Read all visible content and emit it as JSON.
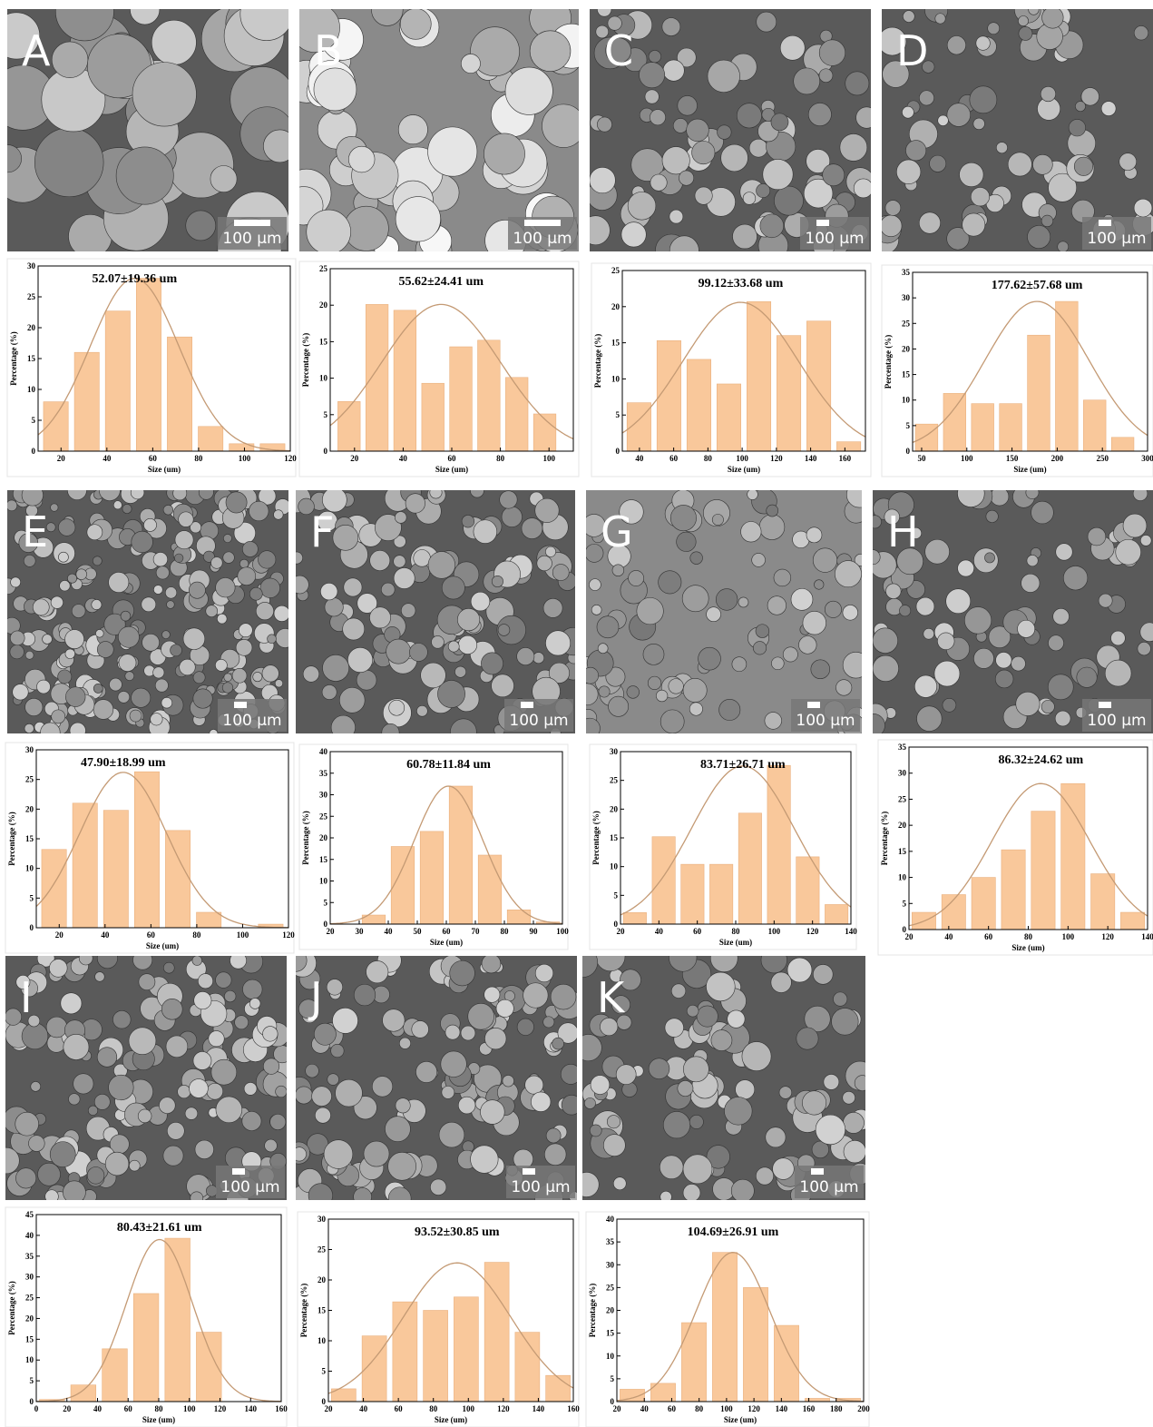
{
  "images": [
    {
      "label": "A",
      "scale_bar": "100 μm"
    },
    {
      "label": "B",
      "scale_bar": "100 μm"
    },
    {
      "label": "C",
      "scale_bar": "100 μm"
    },
    {
      "label": "D",
      "scale_bar": "100 μm"
    },
    {
      "label": "E",
      "scale_bar": "100 μm"
    },
    {
      "label": "F",
      "scale_bar": "100 μm"
    },
    {
      "label": "G",
      "scale_bar": "100 μm"
    },
    {
      "label": "H",
      "scale_bar": "100 μm"
    },
    {
      "label": "I",
      "scale_bar": "100 μm"
    },
    {
      "label": "J",
      "scale_bar": "100 μm"
    },
    {
      "label": "K",
      "scale_bar": "100 μm"
    }
  ],
  "chart_data": [
    {
      "type": "histogram",
      "title": "52.07±19.36 um",
      "x_label": "Size (um)",
      "y_label": "Percentage (%)",
      "color": "#f9c89b",
      "fit_color": "#c49a74",
      "bins": [
        11,
        24.5,
        38,
        51.5,
        65,
        78.5,
        92,
        105.5,
        119
      ],
      "values": [
        8,
        16,
        22.7,
        28,
        18.5,
        4,
        1.2,
        1.2
      ],
      "fit": {
        "mean": 52.07,
        "sd": 19.36,
        "peak": 28
      },
      "xlim": [
        10,
        120
      ],
      "xticks": [
        20,
        40,
        60,
        80,
        100,
        120
      ],
      "ylim": [
        0,
        30
      ],
      "yticks": [
        0,
        5,
        10,
        15,
        20,
        25,
        30
      ]
    },
    {
      "type": "histogram",
      "title": "55.62±24.41 um",
      "x_label": "Size (um)",
      "y_label": "Percentage (%)",
      "color": "#f9c89b",
      "fit_color": "#c49a74",
      "bins": [
        12,
        23.5,
        35,
        46.5,
        58,
        69.5,
        81,
        92.5,
        104
      ],
      "values": [
        6.8,
        20.1,
        19.3,
        9.3,
        14.3,
        15.2,
        10.1,
        5.1
      ],
      "fit": {
        "mean": 55.62,
        "sd": 24.41,
        "peak": 20.1
      },
      "xlim": [
        10,
        110
      ],
      "xticks": [
        20,
        40,
        60,
        80,
        100
      ],
      "ylim": [
        0,
        25
      ],
      "yticks": [
        0,
        5,
        10,
        15,
        20,
        25
      ]
    },
    {
      "type": "histogram",
      "title": "99.12±33.68 um",
      "x_label": "Size (um)",
      "y_label": "Percentage (%)",
      "color": "#f9c89b",
      "fit_color": "#c49a74",
      "bins": [
        31,
        48.5,
        66,
        83.5,
        101,
        118.5,
        136,
        153.5,
        171
      ],
      "values": [
        6.7,
        15.3,
        12.7,
        9.3,
        20.7,
        16,
        18,
        1.3
      ],
      "fit": {
        "mean": 99.12,
        "sd": 33.68,
        "peak": 20.6
      },
      "xlim": [
        30,
        172
      ],
      "xticks": [
        40,
        60,
        80,
        100,
        120,
        140,
        160
      ],
      "ylim": [
        0,
        25
      ],
      "yticks": [
        0,
        5,
        10,
        15,
        20,
        25
      ]
    },
    {
      "type": "histogram",
      "title": "177.62±57.68 um",
      "x_label": "Size (um)",
      "y_label": "Percentage (%)",
      "color": "#f9c89b",
      "fit_color": "#c49a74",
      "bins": [
        40,
        71,
        102,
        133,
        164,
        195,
        226,
        257,
        288
      ],
      "values": [
        5.3,
        11.3,
        9.3,
        9.3,
        22.7,
        29.3,
        10,
        2.7
      ],
      "fit": {
        "mean": 177.62,
        "sd": 57.68,
        "peak": 29.3
      },
      "xlim": [
        40,
        300
      ],
      "xticks": [
        50,
        100,
        150,
        200,
        250,
        300
      ],
      "ylim": [
        0,
        35
      ],
      "yticks": [
        0,
        5,
        10,
        15,
        20,
        25,
        30,
        35
      ]
    },
    {
      "type": "histogram",
      "title": "47.90±18.99 um",
      "x_label": "Size (um)",
      "y_label": "Percentage (%)",
      "color": "#f9c89b",
      "fit_color": "#c49a74",
      "bins": [
        11,
        24.5,
        38,
        51.5,
        65,
        78.5,
        92,
        105.5,
        119
      ],
      "values": [
        13.2,
        21,
        19.8,
        26.3,
        16.4,
        2.6,
        0,
        0.6
      ],
      "fit": {
        "mean": 47.9,
        "sd": 18.99,
        "peak": 26.2
      },
      "xlim": [
        10,
        120
      ],
      "xticks": [
        20,
        40,
        60,
        80,
        100,
        120
      ],
      "ylim": [
        0,
        30
      ],
      "yticks": [
        0,
        5,
        10,
        15,
        20,
        25,
        30
      ]
    },
    {
      "type": "histogram",
      "title": "60.78±11.84 um",
      "x_label": "Size (um)",
      "y_label": "Percentage (%)",
      "color": "#f9c89b",
      "fit_color": "#c49a74",
      "bins": [
        30,
        40,
        50,
        60,
        70,
        80,
        90,
        100
      ],
      "values": [
        2.1,
        18,
        21.5,
        32,
        16,
        3.3,
        0.5
      ],
      "fit": {
        "mean": 60.78,
        "sd": 11.84,
        "peak": 32
      },
      "xlim": [
        20,
        100
      ],
      "xticks": [
        20,
        30,
        40,
        50,
        60,
        70,
        80,
        90,
        100
      ],
      "ylim": [
        0,
        40
      ],
      "yticks": [
        0,
        5,
        10,
        15,
        20,
        25,
        30,
        35,
        40
      ]
    },
    {
      "type": "histogram",
      "title": "83.71±26.71 um",
      "x_label": "Size (um)",
      "y_label": "Percentage (%)",
      "color": "#f9c89b",
      "fit_color": "#c49a74",
      "bins": [
        20,
        35,
        50,
        65,
        80,
        95,
        110,
        125,
        140
      ],
      "values": [
        2,
        15.2,
        10.4,
        10.4,
        19.3,
        27.6,
        11.7,
        3.4
      ],
      "fit": {
        "mean": 83.71,
        "sd": 26.71,
        "peak": 27.5
      },
      "xlim": [
        20,
        140
      ],
      "xticks": [
        20,
        40,
        60,
        80,
        100,
        120,
        140
      ],
      "ylim": [
        0,
        30
      ],
      "yticks": [
        0,
        5,
        10,
        15,
        20,
        25,
        30
      ]
    },
    {
      "type": "histogram",
      "title": "86.32±24.62 um",
      "x_label": "Size (um)",
      "y_label": "Percentage (%)",
      "color": "#f9c89b",
      "fit_color": "#c49a74",
      "bins": [
        20,
        35,
        50,
        65,
        80,
        95,
        110,
        125,
        140
      ],
      "values": [
        3.3,
        6.7,
        10,
        15.3,
        22.7,
        28,
        10.7,
        3.3
      ],
      "fit": {
        "mean": 86.32,
        "sd": 24.62,
        "peak": 28
      },
      "xlim": [
        20,
        140
      ],
      "xticks": [
        20,
        40,
        60,
        80,
        100,
        120,
        140
      ],
      "ylim": [
        0,
        35
      ],
      "yticks": [
        0,
        5,
        10,
        15,
        20,
        25,
        30,
        35
      ]
    },
    {
      "type": "histogram",
      "title": "80.43±21.61 um",
      "x_label": "Size (um)",
      "y_label": "Percentage (%)",
      "color": "#f9c89b",
      "fit_color": "#c49a74",
      "bins": [
        0,
        20.5,
        41,
        61.5,
        82,
        102.5,
        123
      ],
      "values": [
        0.5,
        4,
        12.7,
        26,
        39.3,
        16.7
      ],
      "fit": {
        "mean": 80.43,
        "sd": 21.61,
        "peak": 39
      },
      "xlim": [
        0,
        160
      ],
      "xticks": [
        0,
        20,
        40,
        60,
        80,
        100,
        120,
        140,
        160
      ],
      "ylim": [
        0,
        45
      ],
      "yticks": [
        0,
        5,
        10,
        15,
        20,
        25,
        30,
        35,
        40,
        45
      ]
    },
    {
      "type": "histogram",
      "title": "93.52±30.85 um",
      "x_label": "Size (um)",
      "y_label": "Percentage (%)",
      "color": "#f9c89b",
      "fit_color": "#c49a74",
      "bins": [
        20,
        37.5,
        55,
        72.5,
        90,
        107.5,
        125,
        142.5,
        160
      ],
      "values": [
        2.1,
        10.8,
        16.4,
        15,
        17.2,
        22.9,
        11.4,
        4.3
      ],
      "fit": {
        "mean": 93.52,
        "sd": 30.85,
        "peak": 22.8
      },
      "xlim": [
        20,
        160
      ],
      "xticks": [
        20,
        40,
        60,
        80,
        100,
        120,
        140,
        160
      ],
      "ylim": [
        0,
        30
      ],
      "yticks": [
        0,
        5,
        10,
        15,
        20,
        25,
        30
      ]
    },
    {
      "type": "histogram",
      "title": "104.69±26.91 um",
      "x_label": "Size (um)",
      "y_label": "Percentage (%)",
      "color": "#f9c89b",
      "fit_color": "#c49a74",
      "bins": [
        20,
        42.5,
        65,
        87.5,
        110,
        132.5,
        155,
        177.5,
        200
      ],
      "values": [
        2.7,
        4,
        17.3,
        32.7,
        25,
        16.7,
        0.7,
        0.7
      ],
      "fit": {
        "mean": 104.69,
        "sd": 26.91,
        "peak": 32.7
      },
      "xlim": [
        20,
        200
      ],
      "xticks": [
        20,
        40,
        60,
        80,
        100,
        120,
        140,
        160,
        180,
        200
      ],
      "ylim": [
        0,
        40
      ],
      "yticks": [
        0,
        5,
        10,
        15,
        20,
        25,
        30,
        35,
        40
      ]
    }
  ]
}
